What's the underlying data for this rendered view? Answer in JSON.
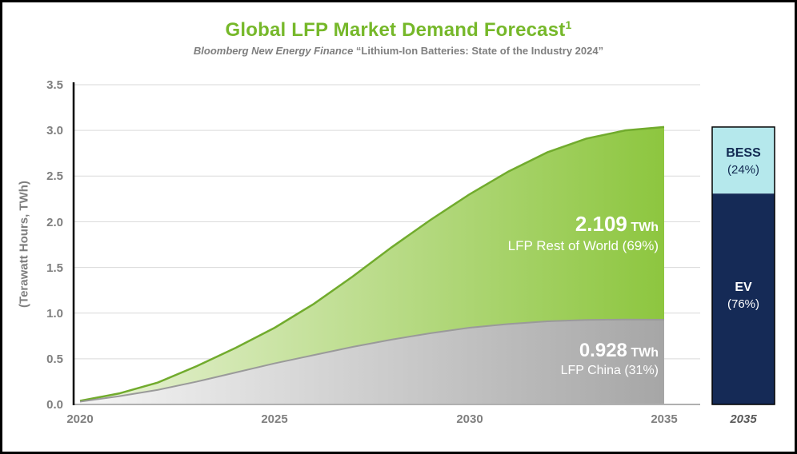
{
  "title": {
    "text": "Global LFP Market Demand Forecast",
    "sup": "1"
  },
  "subtitle": {
    "source": "Bloomberg New Energy Finance",
    "quote": "“Lithium-Ion Batteries: State of the Industry 2024”"
  },
  "axes": {
    "y_label": "(Terawatt Hours, TWh)",
    "y_ticks": [
      "3.5",
      "3.0",
      "2.5",
      "2.0",
      "1.5",
      "1.0",
      "0.5",
      "0.0"
    ],
    "x_ticks": [
      "2020",
      "2025",
      "2030",
      "2035"
    ],
    "bar_x_tick": "2035"
  },
  "annotations": {
    "row_value": "2.109",
    "row_unit": "TWh",
    "row_label": "LFP Rest of World (69%)",
    "china_value": "0.928",
    "china_unit": "TWh",
    "china_label": "LFP China (31%)"
  },
  "bar": {
    "segments": [
      {
        "name": "BESS",
        "pct_label": "(24%)",
        "fraction": 0.24,
        "color": "#b5e8ec",
        "text_color": "#122a52"
      },
      {
        "name": "EV",
        "pct_label": "(76%)",
        "fraction": 0.76,
        "color": "#152a56",
        "text_color": "#ffffff"
      }
    ]
  },
  "colors": {
    "title_green": "#76b82a",
    "green_area_start": "#eaf3d9",
    "green_area_end": "#8dc63f",
    "green_stroke": "#71ab2d",
    "gray_area_start": "#f5f5f5",
    "gray_area_end": "#a6a6a6",
    "gray_stroke": "#9a9a9a",
    "gridline": "#d9d9d9",
    "axis_gray": "#b0b0b0",
    "axis_black": "#000000"
  },
  "chart_data": {
    "type": "area",
    "stacked": true,
    "title": "Global LFP Market Demand Forecast",
    "subtitle": "Bloomberg New Energy Finance “Lithium-Ion Batteries: State of the Industry 2024”",
    "xlabel": "",
    "ylabel": "(Terawatt Hours, TWh)",
    "ylim": [
      0,
      3.5
    ],
    "x": [
      2020,
      2021,
      2022,
      2023,
      2024,
      2025,
      2026,
      2027,
      2028,
      2029,
      2030,
      2031,
      2032,
      2033,
      2034,
      2035
    ],
    "series": [
      {
        "name": "LFP China",
        "share_2035": "31%",
        "value_2035_twh": 0.928,
        "values": [
          0.03,
          0.09,
          0.16,
          0.25,
          0.35,
          0.45,
          0.54,
          0.63,
          0.71,
          0.78,
          0.84,
          0.88,
          0.91,
          0.925,
          0.93,
          0.928
        ]
      },
      {
        "name": "LFP Rest of World",
        "share_2035": "69%",
        "value_2035_twh": 2.109,
        "values": [
          0.01,
          0.03,
          0.08,
          0.17,
          0.27,
          0.39,
          0.56,
          0.77,
          1.01,
          1.24,
          1.46,
          1.67,
          1.85,
          1.985,
          2.07,
          2.109
        ]
      }
    ],
    "bar_2035": {
      "type": "stacked-bar",
      "total_twh": 3.037,
      "segments": [
        {
          "name": "BESS",
          "share": 0.24
        },
        {
          "name": "EV",
          "share": 0.76
        }
      ]
    },
    "legend_position": "none",
    "grid": true
  }
}
